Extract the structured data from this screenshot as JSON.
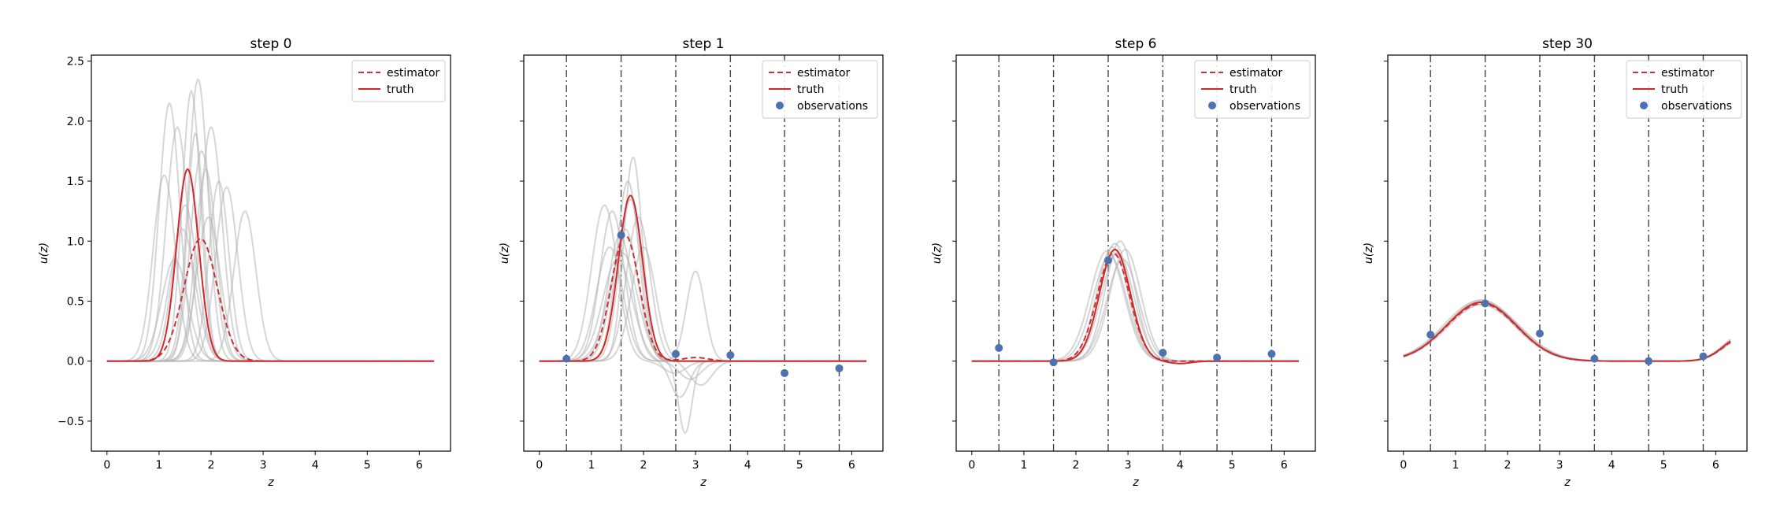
{
  "figure": {
    "colors": {
      "truth": "#d62728",
      "estimator": "#c8333b",
      "ensemble": "#b4b4b4",
      "observations": "#4c72b0",
      "vline": "#444444",
      "frame": "#000000"
    }
  },
  "chart_data": [
    {
      "type": "line",
      "title": "step 0",
      "xlabel": "z",
      "ylabel": "u(z)",
      "xlim": [
        -0.3,
        6.6
      ],
      "ylim": [
        -0.75,
        2.55
      ],
      "xticks": [
        "0",
        "1",
        "2",
        "3",
        "4",
        "5",
        "6"
      ],
      "yticks": [
        "−0.5",
        "0.0",
        "0.5",
        "1.0",
        "1.5",
        "2.0",
        "2.5"
      ],
      "grid": false,
      "legend": {
        "position": "upper right",
        "entries": [
          "estimator",
          "truth"
        ]
      },
      "obs_x": [],
      "observations": [],
      "truth": {
        "name": "truth",
        "style": "solid",
        "peaks": [
          {
            "center": 1.55,
            "amplitude": 1.6,
            "width": 0.3
          }
        ],
        "baseline": 0
      },
      "estimator": {
        "name": "estimator",
        "style": "dashed",
        "peaks": [
          {
            "center": 1.8,
            "amplitude": 1.02,
            "width": 0.45
          }
        ],
        "baseline": 0
      },
      "ensemble": [
        {
          "center": 1.1,
          "amplitude": 1.55,
          "width": 0.3
        },
        {
          "center": 1.2,
          "amplitude": 2.15,
          "width": 0.28
        },
        {
          "center": 1.35,
          "amplitude": 1.95,
          "width": 0.3
        },
        {
          "center": 1.5,
          "amplitude": 1.3,
          "width": 0.32
        },
        {
          "center": 1.62,
          "amplitude": 2.25,
          "width": 0.25
        },
        {
          "center": 1.75,
          "amplitude": 2.35,
          "width": 0.27
        },
        {
          "center": 1.82,
          "amplitude": 1.75,
          "width": 0.3
        },
        {
          "center": 1.9,
          "amplitude": 1.6,
          "width": 0.28
        },
        {
          "center": 2.0,
          "amplitude": 1.95,
          "width": 0.3
        },
        {
          "center": 2.15,
          "amplitude": 1.5,
          "width": 0.27
        },
        {
          "center": 1.45,
          "amplitude": 1.1,
          "width": 0.35
        },
        {
          "center": 1.3,
          "amplitude": 0.85,
          "width": 0.35
        },
        {
          "center": 1.95,
          "amplitude": 1.2,
          "width": 0.32
        },
        {
          "center": 2.65,
          "amplitude": 1.25,
          "width": 0.3
        },
        {
          "center": 2.3,
          "amplitude": 1.45,
          "width": 0.3
        },
        {
          "center": 1.7,
          "amplitude": 1.9,
          "width": 0.22
        }
      ]
    },
    {
      "type": "line",
      "title": "step 1",
      "xlabel": "z",
      "ylabel": "u(z)",
      "xlim": [
        -0.3,
        6.6
      ],
      "ylim": [
        -0.75,
        2.55
      ],
      "xticks": [
        "0",
        "1",
        "2",
        "3",
        "4",
        "5",
        "6"
      ],
      "grid": false,
      "legend": {
        "position": "upper right",
        "entries": [
          "estimator",
          "truth",
          "observations"
        ]
      },
      "obs_x": [
        0.52,
        1.57,
        2.62,
        3.67,
        4.71,
        5.76
      ],
      "observations": [
        {
          "x": 0.52,
          "y": 0.02
        },
        {
          "x": 1.57,
          "y": 1.05
        },
        {
          "x": 2.62,
          "y": 0.06
        },
        {
          "x": 3.67,
          "y": 0.05
        },
        {
          "x": 4.71,
          "y": -0.1
        },
        {
          "x": 5.76,
          "y": -0.06
        }
      ],
      "truth": {
        "name": "truth",
        "style": "solid",
        "peaks": [
          {
            "center": 1.75,
            "amplitude": 1.38,
            "width": 0.33
          }
        ],
        "baseline": 0
      },
      "estimator": {
        "name": "estimator",
        "style": "dashed",
        "peaks": [
          {
            "center": 1.65,
            "amplitude": 1.05,
            "width": 0.38
          },
          {
            "center": 3.0,
            "amplitude": 0.03,
            "width": 0.35
          }
        ],
        "baseline": 0
      },
      "ensemble": [
        {
          "center": 1.25,
          "amplitude": 1.3,
          "width": 0.35,
          "dip_center": 2.6,
          "dip_amplitude": -0.1,
          "dip_width": 0.3
        },
        {
          "center": 1.4,
          "amplitude": 1.25,
          "width": 0.33
        },
        {
          "center": 1.55,
          "amplitude": 1.05,
          "width": 0.33,
          "dip_center": 2.8,
          "dip_amplitude": -0.6,
          "dip_width": 0.18
        },
        {
          "center": 1.65,
          "amplitude": 1.1,
          "width": 0.35
        },
        {
          "center": 1.7,
          "amplitude": 1.5,
          "width": 0.3
        },
        {
          "center": 1.8,
          "amplitude": 1.7,
          "width": 0.25
        },
        {
          "center": 1.6,
          "amplitude": 0.9,
          "width": 0.4,
          "dip_center": 3.0,
          "dip_amplitude": 0.75,
          "dip_width": 0.25
        },
        {
          "center": 1.9,
          "amplitude": 1.2,
          "width": 0.32
        },
        {
          "center": 1.5,
          "amplitude": 0.85,
          "width": 0.4,
          "dip_center": 2.7,
          "dip_amplitude": -0.3,
          "dip_width": 0.25
        },
        {
          "center": 1.75,
          "amplitude": 1.35,
          "width": 0.3,
          "dip_center": 2.9,
          "dip_amplitude": -0.15,
          "dip_width": 0.3
        },
        {
          "center": 1.35,
          "amplitude": 0.95,
          "width": 0.36
        },
        {
          "center": 2.0,
          "amplitude": 0.95,
          "width": 0.33,
          "dip_center": 3.1,
          "dip_amplitude": -0.2,
          "dip_width": 0.3
        }
      ]
    },
    {
      "type": "line",
      "title": "step 6",
      "xlabel": "z",
      "ylabel": "u(z)",
      "xlim": [
        -0.3,
        6.6
      ],
      "ylim": [
        -0.75,
        2.55
      ],
      "xticks": [
        "0",
        "1",
        "2",
        "3",
        "4",
        "5",
        "6"
      ],
      "grid": false,
      "legend": {
        "position": "upper right",
        "entries": [
          "estimator",
          "truth",
          "observations"
        ]
      },
      "obs_x": [
        0.52,
        1.57,
        2.62,
        3.67,
        4.71,
        5.76
      ],
      "observations": [
        {
          "x": 0.52,
          "y": 0.11
        },
        {
          "x": 1.57,
          "y": -0.01
        },
        {
          "x": 2.62,
          "y": 0.84
        },
        {
          "x": 3.67,
          "y": 0.07
        },
        {
          "x": 4.71,
          "y": 0.03
        },
        {
          "x": 5.76,
          "y": 0.06
        }
      ],
      "truth": {
        "name": "truth",
        "style": "solid",
        "peaks": [
          {
            "center": 2.75,
            "amplitude": 0.93,
            "width": 0.42
          },
          {
            "center": 4.0,
            "amplitude": -0.02,
            "width": 0.3
          }
        ],
        "baseline": 0
      },
      "estimator": {
        "name": "estimator",
        "style": "dashed",
        "peaks": [
          {
            "center": 2.72,
            "amplitude": 0.9,
            "width": 0.44
          }
        ],
        "baseline": 0
      },
      "ensemble": [
        {
          "center": 2.7,
          "amplitude": 0.95,
          "width": 0.42
        },
        {
          "center": 2.8,
          "amplitude": 0.9,
          "width": 0.44
        },
        {
          "center": 2.85,
          "amplitude": 1.0,
          "width": 0.4
        },
        {
          "center": 2.65,
          "amplitude": 0.88,
          "width": 0.45
        },
        {
          "center": 2.9,
          "amplitude": 0.85,
          "width": 0.43
        },
        {
          "center": 2.75,
          "amplitude": 0.98,
          "width": 0.41
        },
        {
          "center": 2.6,
          "amplitude": 0.92,
          "width": 0.46
        },
        {
          "center": 2.95,
          "amplitude": 0.93,
          "width": 0.42
        }
      ]
    },
    {
      "type": "line",
      "title": "step 30",
      "xlabel": "z",
      "ylabel": "u(z)",
      "xlim": [
        -0.3,
        6.6
      ],
      "ylim": [
        -0.75,
        2.55
      ],
      "xticks": [
        "0",
        "1",
        "2",
        "3",
        "4",
        "5",
        "6"
      ],
      "grid": false,
      "legend": {
        "position": "upper right",
        "entries": [
          "estimator",
          "truth",
          "observations"
        ]
      },
      "obs_x": [
        0.52,
        1.57,
        2.62,
        3.67,
        4.71,
        5.76
      ],
      "observations": [
        {
          "x": 0.52,
          "y": 0.22
        },
        {
          "x": 1.57,
          "y": 0.48
        },
        {
          "x": 2.62,
          "y": 0.23
        },
        {
          "x": 3.67,
          "y": 0.02
        },
        {
          "x": 4.71,
          "y": 0.0
        },
        {
          "x": 5.76,
          "y": 0.04
        }
      ],
      "truth": {
        "name": "truth",
        "style": "solid",
        "peaks": [
          {
            "center": 1.5,
            "amplitude": 0.49,
            "width": 0.95
          },
          {
            "center": 6.5,
            "amplitude": 0.2,
            "width": 0.5
          }
        ],
        "baseline": 0
      },
      "estimator": {
        "name": "estimator",
        "style": "dashed",
        "peaks": [
          {
            "center": 1.5,
            "amplitude": 0.48,
            "width": 0.95
          },
          {
            "center": 6.5,
            "amplitude": 0.19,
            "width": 0.5
          }
        ],
        "baseline": 0
      },
      "ensemble": [
        {
          "center": 1.45,
          "amplitude": 0.5,
          "width": 0.95,
          "extra_center": 6.5,
          "extra_amplitude": 0.2,
          "extra_width": 0.5
        },
        {
          "center": 1.55,
          "amplitude": 0.48,
          "width": 0.97,
          "extra_center": 6.5,
          "extra_amplitude": 0.18,
          "extra_width": 0.5
        },
        {
          "center": 1.5,
          "amplitude": 0.51,
          "width": 0.93,
          "extra_center": 6.5,
          "extra_amplitude": 0.22,
          "extra_width": 0.5
        },
        {
          "center": 1.48,
          "amplitude": 0.47,
          "width": 0.98,
          "extra_center": 6.5,
          "extra_amplitude": 0.19,
          "extra_width": 0.5
        },
        {
          "center": 1.52,
          "amplitude": 0.5,
          "width": 0.96,
          "extra_center": 6.5,
          "extra_amplitude": 0.21,
          "extra_width": 0.5
        }
      ]
    }
  ]
}
